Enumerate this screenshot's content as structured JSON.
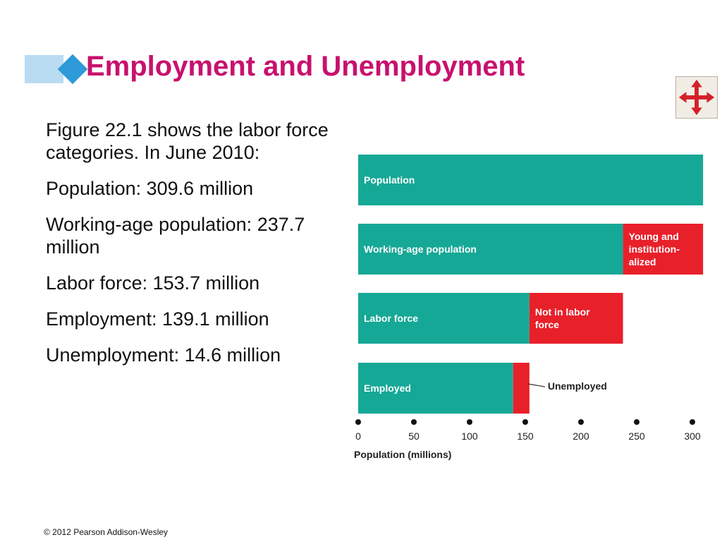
{
  "slide": {
    "title": "Employment and Unemployment",
    "paragraphs": [
      "Figure 22.1 shows the labor force categories. In June 2010:",
      "Population: 309.6 million",
      "Working-age population: 237.7 million",
      "Labor force: 153.7 million",
      "Employment: 139.1 million",
      "Unemployment: 14.6 million"
    ],
    "footer": "© 2012 Pearson Addison-Wesley",
    "nav_icon": "move-arrows-icon"
  },
  "colors": {
    "title": "#c8116e",
    "teal": "#16a896",
    "red": "#e8202a",
    "nav_arrows": "#d42029"
  },
  "chart_data": {
    "type": "bar",
    "orientation": "horizontal",
    "stacked": true,
    "xlabel": "Population (millions)",
    "xlim": [
      0,
      300
    ],
    "xticks": [
      0,
      50,
      100,
      150,
      200,
      250,
      300
    ],
    "grid": false,
    "bars": [
      {
        "segments": [
          {
            "label": "Population",
            "start": 0,
            "end": 309.6,
            "color": "#16a896"
          }
        ]
      },
      {
        "segments": [
          {
            "label": "Working-age population",
            "start": 0,
            "end": 237.7,
            "color": "#16a896"
          },
          {
            "label": "Young and institution-alized",
            "start": 237.7,
            "end": 309.6,
            "color": "#e8202a"
          }
        ]
      },
      {
        "segments": [
          {
            "label": "Labor force",
            "start": 0,
            "end": 153.7,
            "color": "#16a896"
          },
          {
            "label": "Not in labor force",
            "start": 153.7,
            "end": 237.7,
            "color": "#e8202a"
          }
        ]
      },
      {
        "segments": [
          {
            "label": "Employed",
            "start": 0,
            "end": 139.1,
            "color": "#16a896"
          },
          {
            "label": "",
            "start": 139.1,
            "end": 153.7,
            "color": "#e8202a"
          }
        ]
      }
    ],
    "annotations": [
      {
        "text": "Unemployed",
        "points_to": "Unemployed"
      }
    ]
  }
}
